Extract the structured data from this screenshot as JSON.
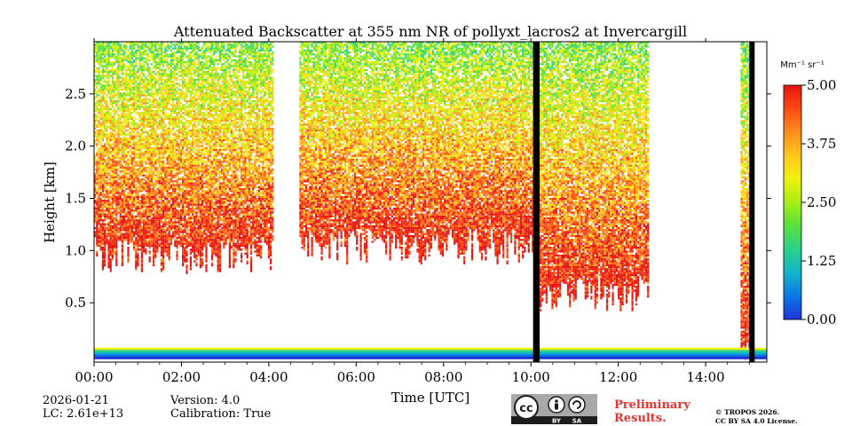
{
  "chart_data": {
    "type": "heatmap",
    "title": "Attenuated Backscatter at 355 nm NR of pollyxt_lacros2 at Invercargill",
    "xlabel": "Time [UTC]",
    "ylabel": "Height [km]",
    "xlim": [
      0,
      15.4
    ],
    "ylim": [
      0,
      3.0
    ],
    "x_tick_values": [
      0,
      2,
      4,
      6,
      8,
      10,
      12,
      14
    ],
    "x_tick_labels": [
      "00:00",
      "02:00",
      "04:00",
      "06:00",
      "08:00",
      "10:00",
      "12:00",
      "14:00"
    ],
    "y_tick_values": [
      0.5,
      1.0,
      1.5,
      2.0,
      2.5
    ],
    "y_tick_labels": [
      "0.5",
      "1.0",
      "1.5",
      "2.0",
      "2.5"
    ],
    "colorbar": {
      "label": "Mm⁻¹ sr⁻¹",
      "range": [
        0.0,
        5.0
      ],
      "tick_values": [
        0.0,
        1.25,
        2.5,
        3.75,
        5.0
      ],
      "tick_labels": [
        "0.00",
        "1.25",
        "2.50",
        "3.75",
        "5.00"
      ],
      "colormap": [
        "#1f32d8",
        "#0a78e6",
        "#12b4c8",
        "#2ad28a",
        "#58e03c",
        "#a8ee14",
        "#f0f010",
        "#ffc81e",
        "#ff8c1c",
        "#ff4a14",
        "#e61210"
      ]
    },
    "data_gaps_hours": [
      [
        4.1,
        4.7
      ],
      [
        10.05,
        10.2
      ],
      [
        15.0,
        15.1
      ]
    ],
    "cloud_top_segments_km": [
      {
        "start": 0.0,
        "end": 4.1,
        "base_km": 0.95,
        "top_km": 3.0
      },
      {
        "start": 4.7,
        "end": 10.05,
        "base_km": 1.05,
        "top_km": 3.0
      },
      {
        "start": 10.2,
        "end": 12.7,
        "base_km": 0.6,
        "top_km": 3.0
      },
      {
        "start": 14.8,
        "end": 15.0,
        "base_km": 0.0,
        "top_km": 3.0
      }
    ]
  },
  "footer": {
    "date": "2026-01-21",
    "lc": "LC: 2.61e+13",
    "version": "Version: 4.0",
    "calibration": "Calibration: True",
    "preliminary_line1": "Preliminary",
    "preliminary_line2": "Results.",
    "copyright_line1": "© TROPOS 2026.",
    "copyright_line2": "CC BY SA 4.0 License.",
    "license_badge": {
      "cc": "cc",
      "by": "BY",
      "sa": "SA"
    }
  },
  "colors": {
    "accent_red": "#e8322e",
    "badge_grey": "#a6a9a6",
    "badge_dark": "#1d1d1b"
  }
}
